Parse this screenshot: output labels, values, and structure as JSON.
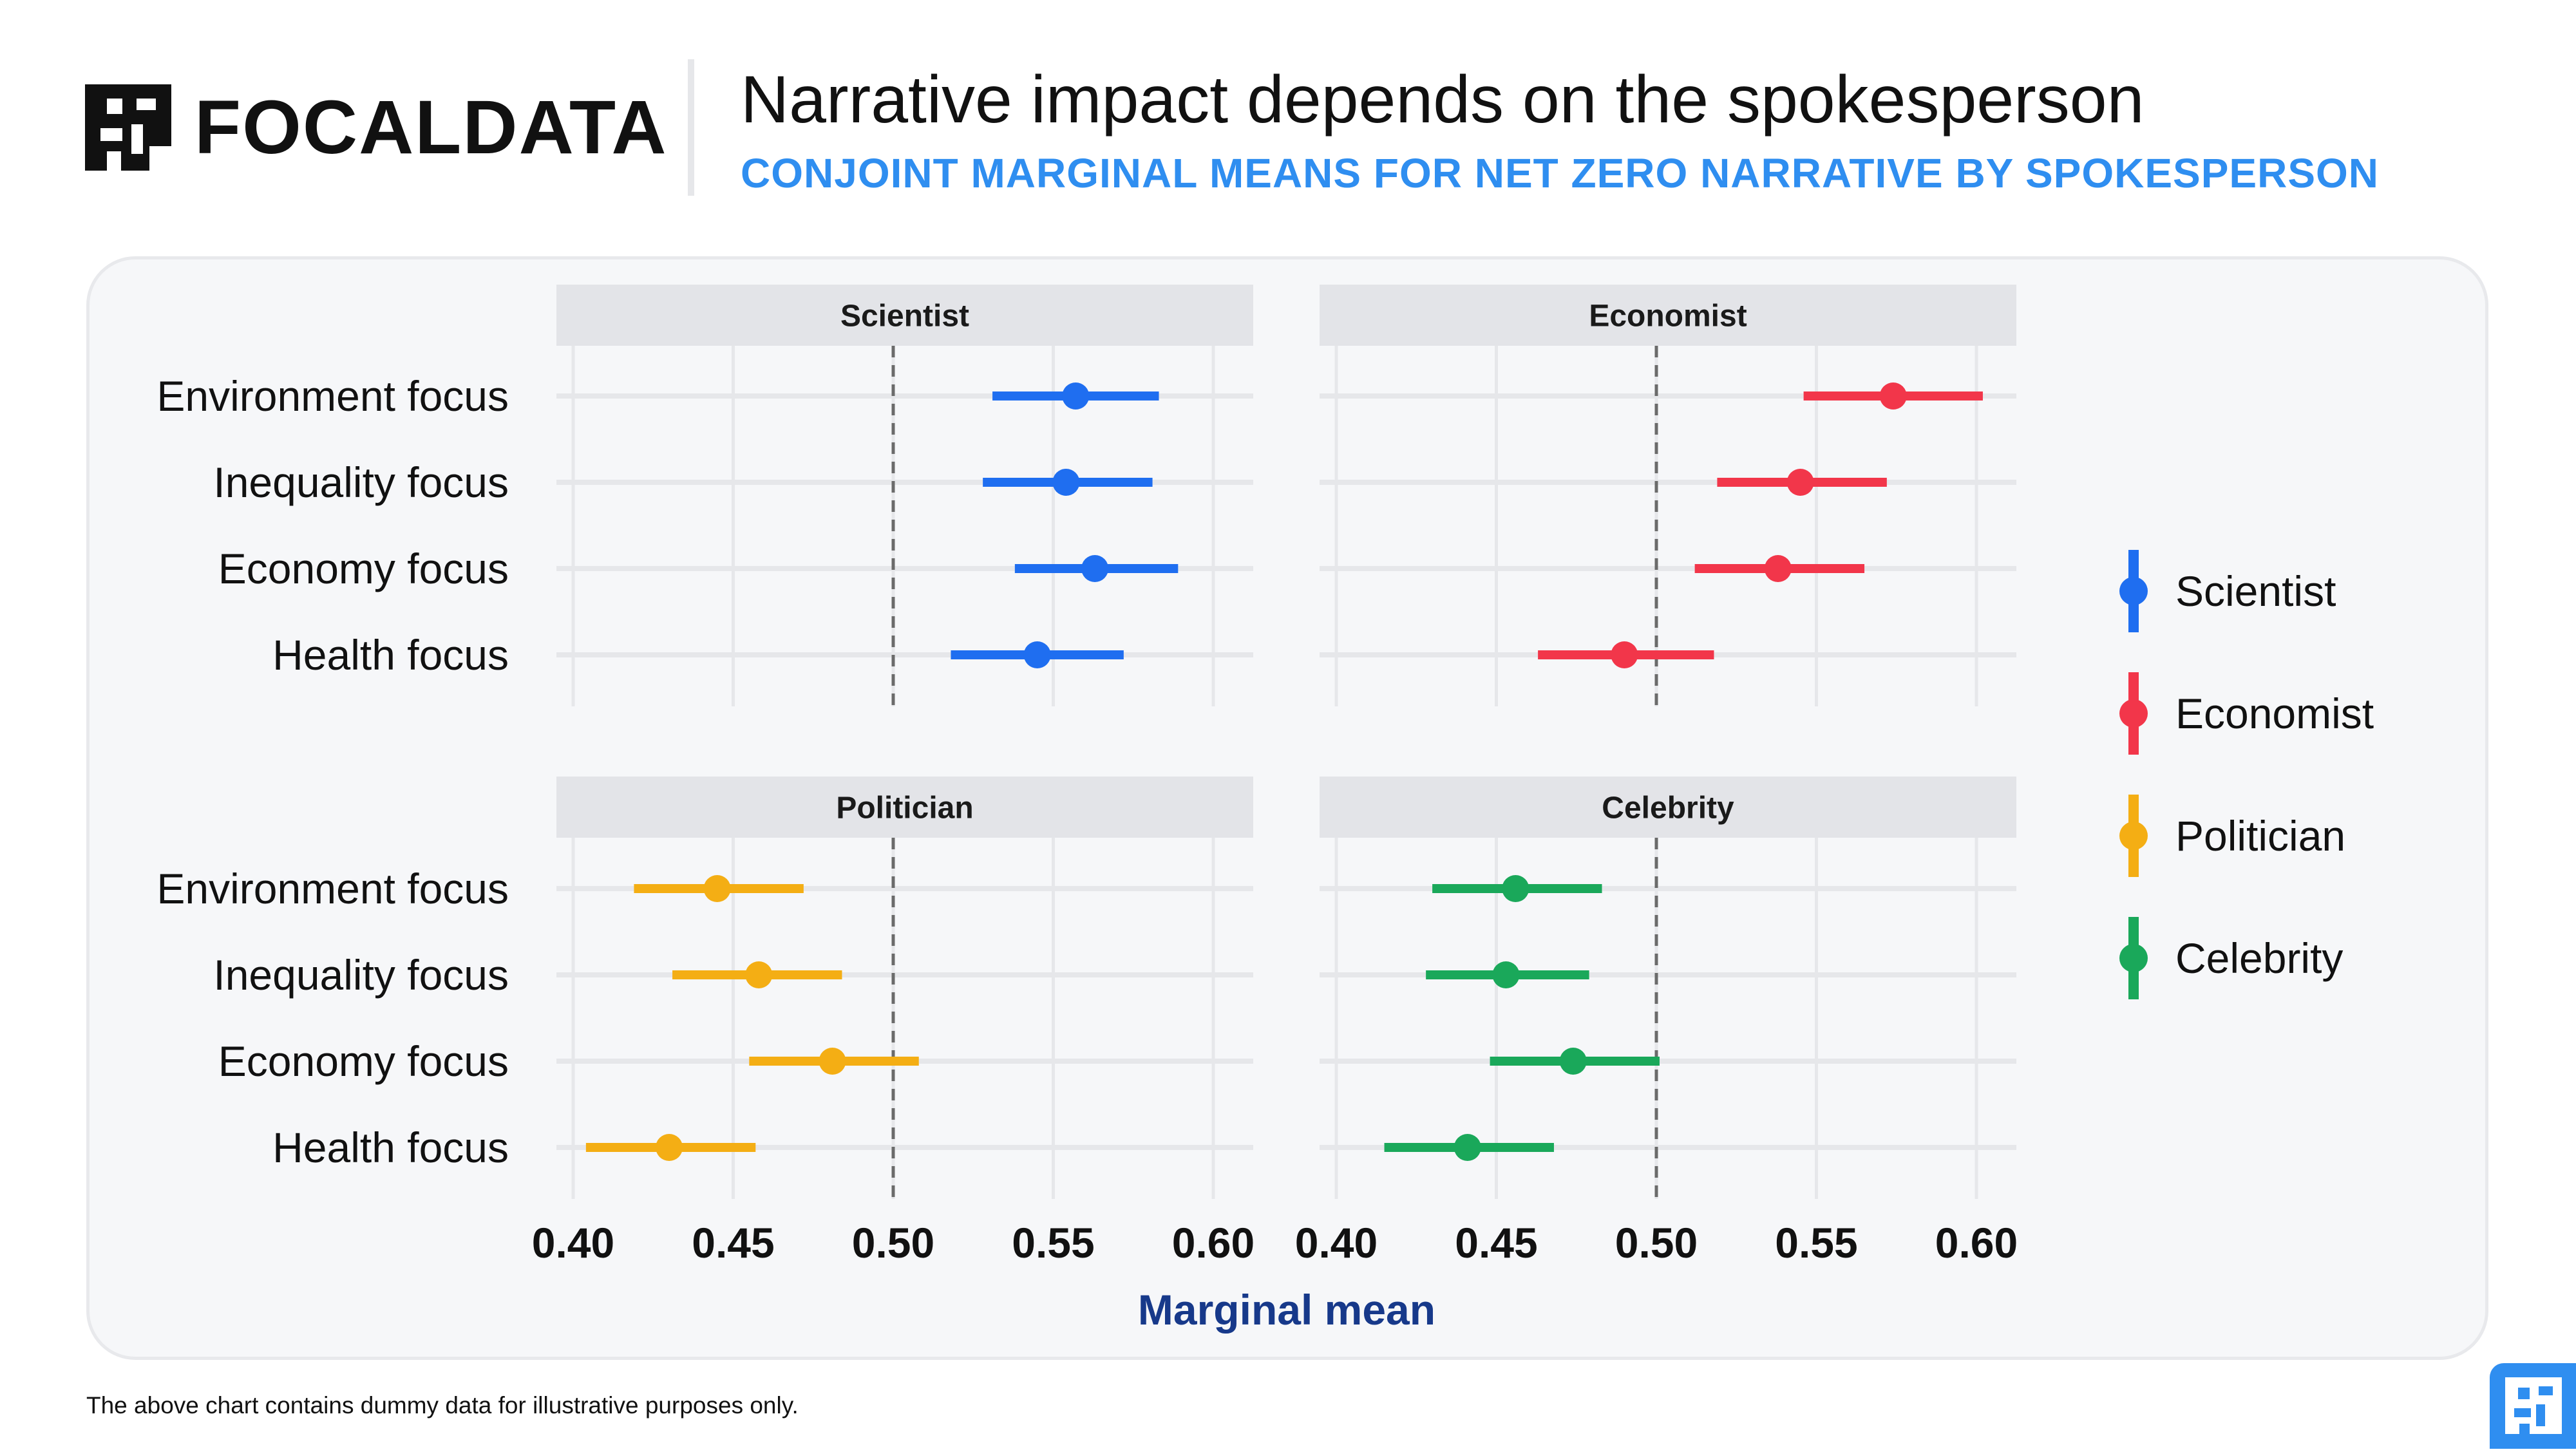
{
  "header": {
    "brand": "FOCALDATA",
    "title": "Narrative impact depends on the spokesperson",
    "subtitle": "CONJOINT MARGINAL MEANS FOR NET ZERO NARRATIVE BY SPOKESPERSON"
  },
  "footnote": "The above chart contains dummy data for illustrative purposes only.",
  "icons": {
    "brand_logo": "focaldata-logo-icon",
    "corner_logo": "focaldata-corner-logo-icon"
  },
  "chart_data": {
    "type": "scatter",
    "subtype": "faceted point-range (dot and whisker)",
    "xlabel": "Marginal mean",
    "xlim": [
      0.4,
      0.6
    ],
    "x_ticks": [
      "0.40",
      "0.45",
      "0.50",
      "0.55",
      "0.60"
    ],
    "reference_line": 0.5,
    "categories": [
      "Environment focus",
      "Inequality focus",
      "Economy focus",
      "Health focus"
    ],
    "legend_position": "right",
    "series": [
      {
        "name": "Scientist",
        "color": "#1f6ef0",
        "estimates": [
          0.557,
          0.554,
          0.563,
          0.545
        ],
        "lower": [
          0.531,
          0.528,
          0.538,
          0.518
        ],
        "upper": [
          0.583,
          0.581,
          0.589,
          0.572
        ]
      },
      {
        "name": "Economist",
        "color": "#f2364a",
        "estimates": [
          0.574,
          0.545,
          0.538,
          0.49
        ],
        "lower": [
          0.546,
          0.519,
          0.512,
          0.463
        ],
        "upper": [
          0.602,
          0.572,
          0.565,
          0.518
        ]
      },
      {
        "name": "Politician",
        "color": "#f4ae14",
        "estimates": [
          0.445,
          0.458,
          0.481,
          0.43
        ],
        "lower": [
          0.419,
          0.431,
          0.455,
          0.404
        ],
        "upper": [
          0.472,
          0.484,
          0.508,
          0.457
        ]
      },
      {
        "name": "Celebrity",
        "color": "#1aa85a",
        "estimates": [
          0.456,
          0.453,
          0.474,
          0.441
        ],
        "lower": [
          0.43,
          0.428,
          0.448,
          0.415
        ],
        "upper": [
          0.483,
          0.479,
          0.501,
          0.468
        ]
      }
    ]
  }
}
